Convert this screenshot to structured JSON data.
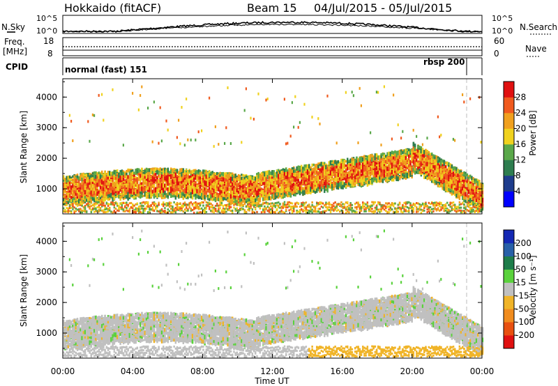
{
  "header": {
    "station": "Hokkaido (fitACF)",
    "beam": "Beam 15",
    "date_range": "04/Jul/2015 - 05/Jul/2015"
  },
  "nsky_panel": {
    "label": "N.Sky",
    "right_label": "N.Search",
    "left_ticks": [
      "10^5",
      "10^0"
    ],
    "right_ticks": [
      "10^5",
      "10^0"
    ]
  },
  "freq_panel": {
    "label_line1": "Freq.",
    "label_line2": "[MHz]",
    "left_ticks": [
      "18",
      "8"
    ],
    "right_ticks": [
      "60",
      "0"
    ],
    "right_label": "Nave"
  },
  "cpid": {
    "label": "CPID",
    "left_text": "normal (fast) 151",
    "right_text": "rbsp 200"
  },
  "x_axis": {
    "label": "Time UT",
    "ticks": [
      "00:00",
      "04:00",
      "08:00",
      "12:00",
      "16:00",
      "20:00",
      "00:00"
    ]
  },
  "power_panel": {
    "ylabel": "Slant Range [km]",
    "yticks": [
      "1000",
      "2000",
      "3000",
      "4000"
    ],
    "colorbar_label": "Power [dB]",
    "colorbar_ticks": [
      "4",
      "8",
      "12",
      "16",
      "20",
      "24",
      "28"
    ],
    "colors": [
      "#0000ff",
      "#1e3c8c",
      "#2e7d4f",
      "#5aa84a",
      "#f0d21e",
      "#f0a01e",
      "#f05a1e",
      "#e01010"
    ]
  },
  "velocity_panel": {
    "ylabel": "Slant Range [km]",
    "yticks": [
      "1000",
      "2000",
      "3000",
      "4000"
    ],
    "colorbar_label": "Velocity [m s⁻¹]",
    "colorbar_ticks": [
      "200",
      "100",
      "50",
      "15",
      "-15",
      "-50",
      "-100",
      "-200"
    ],
    "colors": [
      "#1428b4",
      "#2860a8",
      "#1e7d4a",
      "#5ad23c",
      "#c0c0c0",
      "#f0b428",
      "#f08c1e",
      "#e85010",
      "#e01010"
    ]
  },
  "chart_data": {
    "type": "heatmap",
    "x_range_hours": [
      0,
      24
    ],
    "y_range_km": [
      180,
      4600
    ],
    "series": [
      {
        "name": "Power [dB]",
        "value_range": [
          0,
          30
        ]
      },
      {
        "name": "Velocity [m s⁻¹]",
        "value_range": [
          -250,
          250
        ]
      }
    ]
  }
}
